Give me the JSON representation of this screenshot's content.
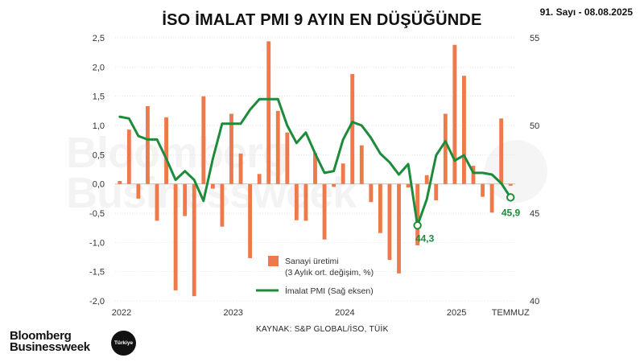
{
  "title": "İSO İMALAT PMI 9 AYIN EN DÜŞÜĞÜNDE",
  "issue": "91. Sayı - 08.08.2025",
  "source": "KAYNAK: S&P GLOBAL/İSO, TÜİK",
  "brand": {
    "line1": "Bloomberg",
    "line2": "Businessweek",
    "badge": "Türkiye"
  },
  "watermark": {
    "line1": "Bloomberg",
    "line2": "Businessweek",
    "badge": "Türkiye"
  },
  "colors": {
    "bar": "#EE7A4B",
    "line": "#1E8B3A",
    "grid": "#dddddd",
    "text": "#333333"
  },
  "chart_data": {
    "type": "bar",
    "title": "İSO İMALAT PMI 9 AYIN EN DÜŞÜĞÜNDE",
    "xlabel": "",
    "x": [
      "2022-01",
      "2022-02",
      "2022-03",
      "2022-04",
      "2022-05",
      "2022-06",
      "2022-07",
      "2022-08",
      "2022-09",
      "2022-10",
      "2022-11",
      "2022-12",
      "2023-01",
      "2023-02",
      "2023-03",
      "2023-04",
      "2023-05",
      "2023-06",
      "2023-07",
      "2023-08",
      "2023-09",
      "2023-10",
      "2023-11",
      "2023-12",
      "2024-01",
      "2024-02",
      "2024-03",
      "2024-04",
      "2024-05",
      "2024-06",
      "2024-07",
      "2024-08",
      "2024-09",
      "2024-10",
      "2024-11",
      "2024-12",
      "2025-01",
      "2025-02",
      "2025-03",
      "2025-04",
      "2025-05",
      "2025-06",
      "2025-07"
    ],
    "x_tick_labels": [
      "2022",
      "2023",
      "2024",
      "2025",
      "TEMMUZ"
    ],
    "left_axis": {
      "ylim": [
        -2.0,
        2.5
      ],
      "ticks": [
        "2,5",
        "2,0",
        "1,5",
        "1,0",
        "0,5",
        "0,0",
        "-0,5",
        "-1,0",
        "-1,5",
        "-2,0"
      ]
    },
    "right_axis": {
      "ylim": [
        40,
        55
      ],
      "ticks": [
        "55",
        "50",
        "45",
        "40"
      ]
    },
    "legend_position": "bottom-center",
    "series": [
      {
        "name": "Sanayi üretimi",
        "name_line2": "(3 Aylık ort. değişim, %)",
        "type": "bar",
        "axis": "left",
        "values": [
          0.05,
          0.93,
          -0.25,
          1.33,
          -0.63,
          1.14,
          -1.82,
          -0.55,
          -1.92,
          1.5,
          -0.08,
          -0.73,
          1.2,
          0.52,
          -1.27,
          0.17,
          2.44,
          1.25,
          0.88,
          -0.62,
          -0.63,
          0.53,
          -0.95,
          -0.05,
          0.35,
          1.88,
          0.66,
          -0.31,
          -0.84,
          -1.3,
          -1.53,
          -0.06,
          -1.05,
          0.15,
          -0.28,
          1.2,
          2.38,
          1.85,
          0.31,
          -0.22,
          -0.49,
          1.12,
          -0.03
        ]
      },
      {
        "name": "İmalat PMI (Sağ eksen)",
        "type": "line",
        "axis": "right",
        "values": [
          50.5,
          50.4,
          49.4,
          49.2,
          49.2,
          48.1,
          46.9,
          47.4,
          46.9,
          45.7,
          48.1,
          50.1,
          50.1,
          50.1,
          50.9,
          51.5,
          51.5,
          51.5,
          50.0,
          49.0,
          49.6,
          48.4,
          47.3,
          47.4,
          49.2,
          50.2,
          50.0,
          49.3,
          48.4,
          47.9,
          47.2,
          47.8,
          44.3,
          45.8,
          48.3,
          49.1,
          48.0,
          48.3,
          47.3,
          47.3,
          47.2,
          46.7,
          45.9
        ],
        "annotations": [
          {
            "index": 32,
            "label": "44,3"
          },
          {
            "index": 42,
            "label": "45,9"
          }
        ]
      }
    ]
  }
}
